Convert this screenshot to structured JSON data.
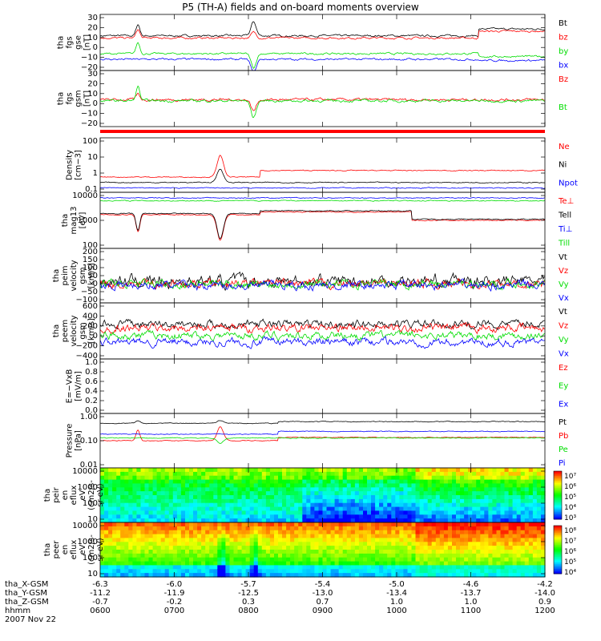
{
  "title": "P5 (TH-A) fields and on-board moments overview",
  "footer": {
    "rows": [
      {
        "label": "tha_X-GSM",
        "values": [
          "-6.3",
          "-6.0",
          "-5.7",
          "-5.4",
          "-5.0",
          "-4.6",
          "-4.2"
        ]
      },
      {
        "label": "tha_Y-GSM",
        "values": [
          "-11.2",
          "-11.9",
          "-12.5",
          "-13.0",
          "-13.4",
          "-13.7",
          "-14.0"
        ]
      },
      {
        "label": "tha_Z-GSM",
        "values": [
          "-0.7",
          "-0.2",
          "0.3",
          "0.7",
          "1.0",
          "1.0",
          "0.9"
        ]
      },
      {
        "label": "hhmm",
        "values": [
          "0600",
          "0700",
          "0800",
          "0900",
          "1000",
          "1100",
          "1200"
        ]
      }
    ],
    "date": "2007 Nov 22"
  },
  "colors": {
    "black": "#000000",
    "red": "#ff0000",
    "green": "#00dd00",
    "blue": "#0000ff"
  },
  "chart_data": [
    {
      "type": "line",
      "ylabel": [
        "tha",
        "fgs",
        "gse",
        "[nT]"
      ],
      "yticks": [
        "30",
        "20",
        "10",
        "0",
        "−10",
        "−20"
      ],
      "ylim": [
        -20,
        32
      ],
      "series": [
        {
          "name": "Bt",
          "color": "black"
        },
        {
          "name": "bz",
          "color": "red"
        },
        {
          "name": "by",
          "color": "green"
        },
        {
          "name": "bx",
          "color": "blue"
        }
      ]
    },
    {
      "type": "line",
      "ylabel": [
        "tha",
        "fgs",
        "gsm",
        "[nT]"
      ],
      "yticks": [
        "30",
        "20",
        "10",
        "0",
        "−10",
        "−20"
      ],
      "ylim": [
        -28,
        32
      ],
      "series": [
        {
          "name": "Bz",
          "color": "red"
        },
        {
          "name": "Bt",
          "color": "green"
        }
      ]
    },
    {
      "type": "line",
      "ylabel": [
        "Density",
        "[cm−3]"
      ],
      "yticks": [
        "100",
        "10",
        "1",
        "0.1"
      ],
      "log": true,
      "series": [
        {
          "name": "Ne",
          "color": "red"
        },
        {
          "name": "Ni",
          "color": "black"
        },
        {
          "name": "Npot",
          "color": "blue"
        }
      ]
    },
    {
      "type": "line",
      "ylabel": [
        "tha",
        "mag13",
        "[eV]"
      ],
      "yticks": [
        "10000",
        "1000",
        "100"
      ],
      "log": true,
      "series": [
        {
          "name": "Te⊥",
          "color": "red"
        },
        {
          "name": "Tell",
          "color": "black"
        },
        {
          "name": "Ti⊥",
          "color": "blue"
        },
        {
          "name": "Till",
          "color": "green"
        }
      ]
    },
    {
      "type": "line",
      "ylabel": [
        "tha",
        "peim",
        "velocity",
        "gsm",
        "[km/s]"
      ],
      "yticks": [
        "200",
        "150",
        "100",
        "50",
        "0",
        "−50",
        "−100"
      ],
      "ylim": [
        -100,
        200
      ],
      "series": [
        {
          "name": "Vt",
          "color": "black"
        },
        {
          "name": "Vz",
          "color": "red"
        },
        {
          "name": "Vy",
          "color": "green"
        },
        {
          "name": "Vx",
          "color": "blue"
        }
      ]
    },
    {
      "type": "line",
      "ylabel": [
        "tha",
        "peem",
        "velocity",
        "gsm",
        "[km/s]"
      ],
      "yticks": [
        "600",
        "400",
        "200",
        "0",
        "−200",
        "−400"
      ],
      "ylim": [
        -400,
        600
      ],
      "series": [
        {
          "name": "Vt",
          "color": "black"
        },
        {
          "name": "Vz",
          "color": "red"
        },
        {
          "name": "Vy",
          "color": "green"
        },
        {
          "name": "Vx",
          "color": "blue"
        }
      ]
    },
    {
      "type": "line",
      "ylabel": [
        "E=−VxB",
        "[mV/m]"
      ],
      "yticks": [
        "1.0",
        "0.8",
        "0.6",
        "0.4",
        "0.2",
        "0.0"
      ],
      "ylim": [
        0,
        1
      ],
      "series": [
        {
          "name": "Ez",
          "color": "red"
        },
        {
          "name": "Ey",
          "color": "green"
        },
        {
          "name": "Ex",
          "color": "blue"
        }
      ]
    },
    {
      "type": "line",
      "ylabel": [
        "Pressure",
        "[nPa]"
      ],
      "yticks": [
        "1.00",
        "0.10",
        "0.01"
      ],
      "log": true,
      "series": [
        {
          "name": "Pt",
          "color": "black"
        },
        {
          "name": "Pb",
          "color": "red"
        },
        {
          "name": "Pe",
          "color": "green"
        },
        {
          "name": "Pi",
          "color": "blue"
        }
      ]
    },
    {
      "type": "heatmap",
      "ylabel": [
        "tha",
        "peir",
        "en",
        "eflux",
        "eV",
        "(cm2/s-",
        "sr-eV)"
      ],
      "yticks": [
        "10000",
        "1000",
        "100",
        "10"
      ],
      "log": true,
      "colorbar": [
        "10⁷",
        "10⁶",
        "10⁵",
        "10⁴",
        "10³"
      ]
    },
    {
      "type": "heatmap",
      "ylabel": [
        "tha",
        "peer",
        "en",
        "eflux",
        "eV",
        "(cm2/s-",
        "sr-eV)"
      ],
      "yticks": [
        "10000",
        "1000",
        "100",
        "10"
      ],
      "log": true,
      "colorbar": [
        "10⁸",
        "10⁷",
        "10⁶",
        "10⁵",
        "10⁴"
      ]
    }
  ]
}
